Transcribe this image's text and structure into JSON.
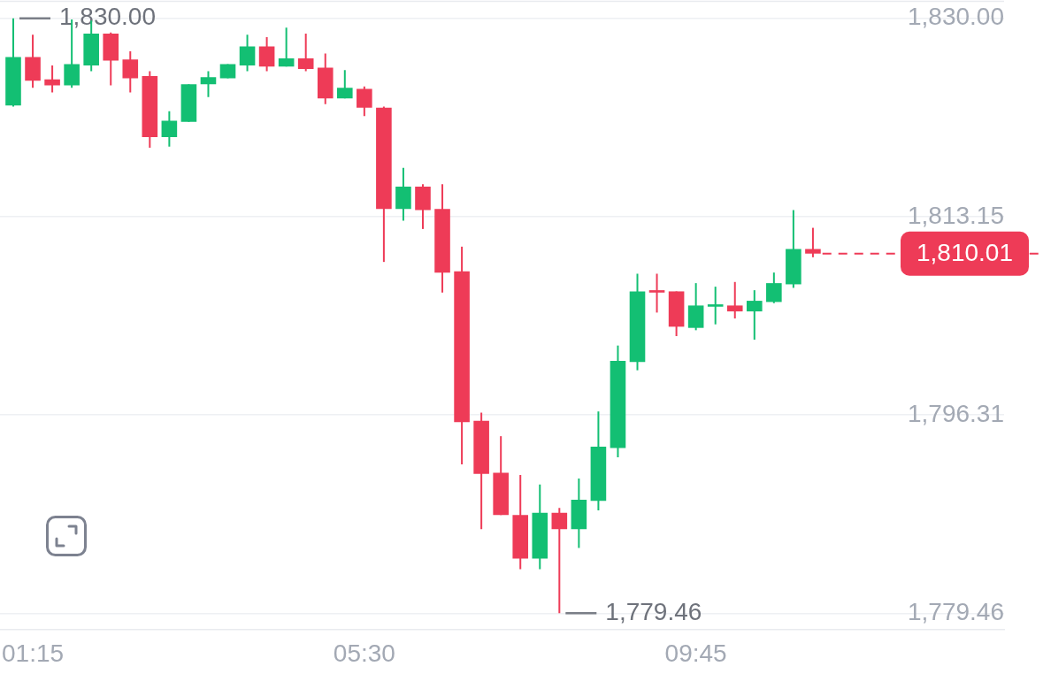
{
  "chart_data": {
    "type": "candlestick",
    "x": [
      1.0,
      1.25,
      1.5,
      1.75,
      2.0,
      2.25,
      2.5,
      2.75,
      3.0,
      3.25,
      3.5,
      3.75,
      4.0,
      4.25,
      4.5,
      4.75,
      5.0,
      5.25,
      5.5,
      5.75,
      6.0,
      6.25,
      6.5,
      6.75,
      7.0,
      7.25,
      7.5,
      7.75,
      8.0,
      8.25,
      8.5,
      8.75,
      9.0,
      9.25,
      9.5,
      9.75,
      10.0,
      10.25,
      10.5,
      10.75,
      11.0,
      11.25
    ],
    "ohlc": [
      [
        1822.6,
        1830.0,
        1822.5,
        1826.7
      ],
      [
        1826.7,
        1828.6,
        1824.1,
        1824.7
      ],
      [
        1824.8,
        1826.0,
        1823.7,
        1824.3
      ],
      [
        1824.3,
        1829.9,
        1824.1,
        1826.1
      ],
      [
        1826.0,
        1829.8,
        1825.5,
        1828.7
      ],
      [
        1828.7,
        1828.8,
        1824.3,
        1826.4
      ],
      [
        1826.5,
        1827.2,
        1823.7,
        1824.9
      ],
      [
        1825.1,
        1825.5,
        1819.0,
        1819.9
      ],
      [
        1819.9,
        1822.1,
        1819.1,
        1821.3
      ],
      [
        1821.2,
        1824.4,
        1821.2,
        1824.4
      ],
      [
        1824.4,
        1825.5,
        1823.3,
        1825.0
      ],
      [
        1824.9,
        1826.1,
        1824.9,
        1826.1
      ],
      [
        1826.0,
        1828.6,
        1825.5,
        1827.6
      ],
      [
        1827.6,
        1828.4,
        1825.5,
        1825.9
      ],
      [
        1825.9,
        1829.2,
        1825.9,
        1826.6
      ],
      [
        1826.6,
        1828.7,
        1825.5,
        1825.7
      ],
      [
        1825.8,
        1827.0,
        1822.7,
        1823.2
      ],
      [
        1823.2,
        1825.6,
        1823.2,
        1824.1
      ],
      [
        1824.0,
        1824.2,
        1821.7,
        1822.4
      ],
      [
        1822.4,
        1822.5,
        1809.3,
        1813.8
      ],
      [
        1813.8,
        1817.3,
        1812.8,
        1815.7
      ],
      [
        1815.7,
        1815.9,
        1812.1,
        1813.7
      ],
      [
        1813.8,
        1815.9,
        1806.7,
        1808.4
      ],
      [
        1808.5,
        1810.6,
        1792.1,
        1795.7
      ],
      [
        1795.8,
        1796.5,
        1786.6,
        1791.3
      ],
      [
        1791.4,
        1794.5,
        1787.8,
        1787.8
      ],
      [
        1787.8,
        1791.2,
        1783.2,
        1784.1
      ],
      [
        1784.1,
        1790.4,
        1783.2,
        1788.0
      ],
      [
        1788.0,
        1788.4,
        1779.46,
        1786.6
      ],
      [
        1786.6,
        1790.9,
        1785.0,
        1789.1
      ],
      [
        1789.0,
        1796.6,
        1788.2,
        1793.6
      ],
      [
        1793.5,
        1802.2,
        1792.7,
        1800.9
      ],
      [
        1800.8,
        1808.3,
        1800.1,
        1806.8
      ],
      [
        1806.9,
        1808.3,
        1805.0,
        1806.7
      ],
      [
        1806.8,
        1806.8,
        1803.0,
        1803.8
      ],
      [
        1803.7,
        1807.5,
        1803.5,
        1805.6
      ],
      [
        1805.5,
        1807.2,
        1804.0,
        1805.7
      ],
      [
        1805.6,
        1807.6,
        1804.5,
        1805.1
      ],
      [
        1805.1,
        1806.9,
        1802.7,
        1806.0
      ],
      [
        1805.9,
        1808.4,
        1805.8,
        1807.5
      ],
      [
        1807.4,
        1813.7,
        1807.1,
        1810.4
      ],
      [
        1810.4,
        1812.2,
        1809.7,
        1810.01
      ]
    ],
    "colors": [
      "#13bf73",
      "#ee3b57",
      "#ee3b57",
      "#13bf73",
      "#13bf73",
      "#ee3b57",
      "#ee3b57",
      "#ee3b57",
      "#13bf73",
      "#13bf73",
      "#13bf73",
      "#13bf73",
      "#13bf73",
      "#ee3b57",
      "#13bf73",
      "#ee3b57",
      "#ee3b57",
      "#13bf73",
      "#ee3b57",
      "#ee3b57",
      "#13bf73",
      "#ee3b57",
      "#ee3b57",
      "#ee3b57",
      "#ee3b57",
      "#ee3b57",
      "#ee3b57",
      "#13bf73",
      "#ee3b57",
      "#13bf73",
      "#13bf73",
      "#13bf73",
      "#13bf73",
      "#ee3b57",
      "#ee3b57",
      "#13bf73",
      "#13bf73",
      "#ee3b57",
      "#13bf73",
      "#13bf73",
      "#13bf73",
      "#ee3b57"
    ],
    "xlim": [
      0.83,
      13.7
    ],
    "xticks": [
      {
        "value": 1.25,
        "label": "01:15"
      },
      {
        "value": 5.5,
        "label": "05:30"
      },
      {
        "value": 9.75,
        "label": "09:45"
      }
    ],
    "ylim": [
      1778.1,
      1831.5
    ],
    "yticks": [
      {
        "value": 1779.46,
        "label": "1,779.46"
      },
      {
        "value": 1796.31,
        "label": "1,796.31"
      },
      {
        "value": 1813.15,
        "label": "1,813.15"
      },
      {
        "value": 1830.0,
        "label": "1,830.00"
      }
    ],
    "grid": "y",
    "legend": false,
    "ref_lines": [
      {
        "axis": "y",
        "value": 1810.01,
        "label": "1,810.01",
        "color": "#ee3b57",
        "line_style": "dashed"
      }
    ],
    "annotations": [
      {
        "text": "1,830.00",
        "x": 1.0,
        "y": 1830.0
      },
      {
        "text": "1,779.46",
        "x": 8.0,
        "y": 1779.46
      }
    ]
  }
}
